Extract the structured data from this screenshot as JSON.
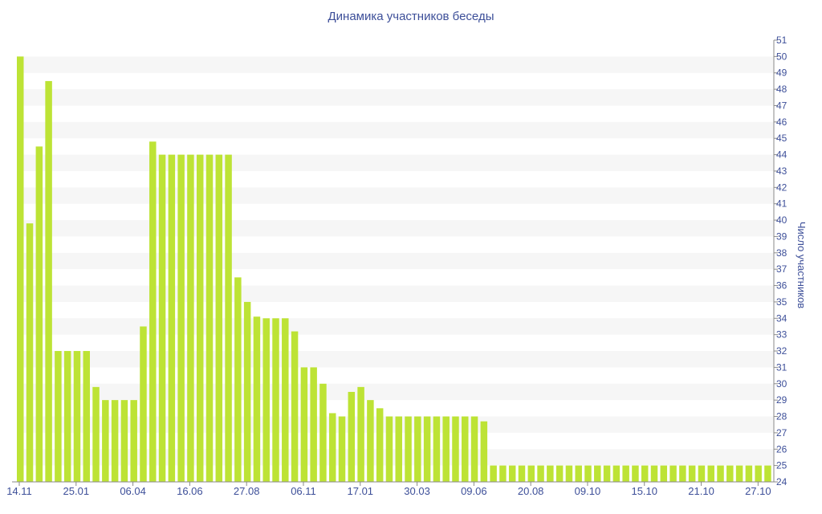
{
  "chart_data": {
    "type": "bar",
    "title": "Динамика участников беседы",
    "ylabel": "Число участников",
    "xlabel": "",
    "ylim": [
      24,
      51
    ],
    "y_axis_position": "right",
    "grid": "alternating horizontal bands",
    "bar_color": "#bde335",
    "x_tick_labels": [
      "14.11",
      "25.01",
      "06.04",
      "16.06",
      "27.08",
      "06.11",
      "17.01",
      "30.03",
      "09.06",
      "20.08",
      "09.10",
      "15.10",
      "21.10",
      "27.10"
    ],
    "values": [
      50,
      39.8,
      44.5,
      48.5,
      32,
      32,
      32,
      32,
      29.8,
      29,
      29,
      29,
      29,
      33.5,
      44.8,
      44,
      44,
      44,
      44,
      44,
      44,
      44,
      44,
      36.5,
      35,
      34.1,
      34,
      34,
      34,
      33.2,
      31,
      31,
      30,
      28.2,
      28,
      29.5,
      29.8,
      29,
      28.5,
      28,
      28,
      28,
      28,
      28,
      28,
      28,
      28,
      28,
      28,
      27.7,
      25,
      25,
      25,
      25,
      25,
      25,
      25,
      25,
      25,
      25,
      25,
      25,
      25,
      25,
      25,
      25,
      25,
      25,
      25,
      25,
      25,
      25,
      25,
      25,
      25,
      25,
      25,
      25,
      25,
      25
    ]
  }
}
